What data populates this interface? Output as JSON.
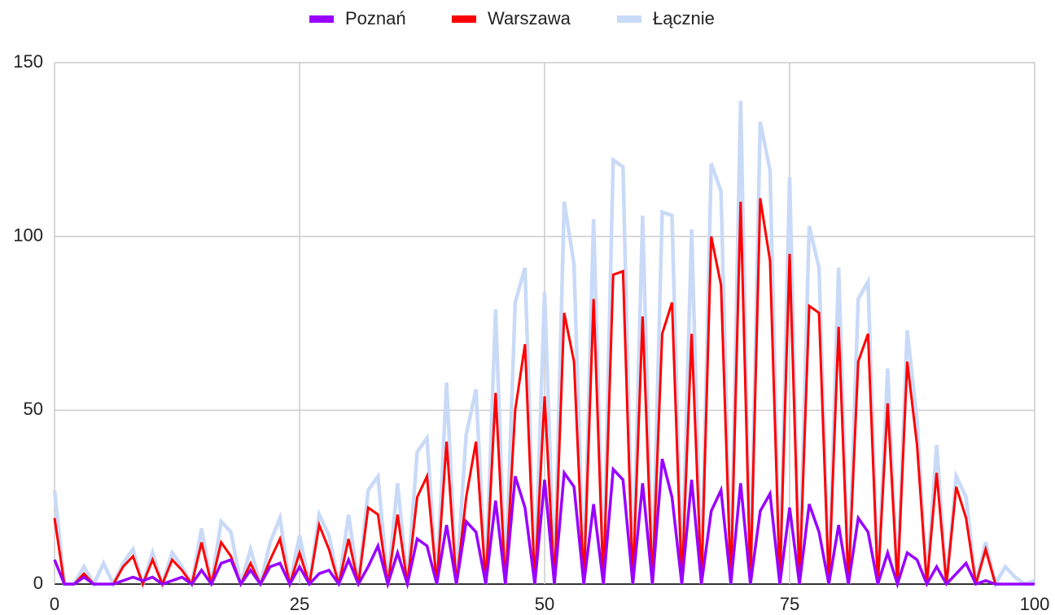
{
  "chart_data": {
    "type": "line",
    "x": [
      0,
      1,
      2,
      3,
      4,
      5,
      6,
      7,
      8,
      9,
      10,
      11,
      12,
      13,
      14,
      15,
      16,
      17,
      18,
      19,
      20,
      21,
      22,
      23,
      24,
      25,
      26,
      27,
      28,
      29,
      30,
      31,
      32,
      33,
      34,
      35,
      36,
      37,
      38,
      39,
      40,
      41,
      42,
      43,
      44,
      45,
      46,
      47,
      48,
      49,
      50,
      51,
      52,
      53,
      54,
      55,
      56,
      57,
      58,
      59,
      60,
      61,
      62,
      63,
      64,
      65,
      66,
      67,
      68,
      69,
      70,
      71,
      72,
      73,
      74,
      75,
      76,
      77,
      78,
      79,
      80,
      81,
      82,
      83,
      84,
      85,
      86,
      87,
      88,
      89,
      90,
      91,
      92,
      93,
      94,
      95,
      96,
      97,
      98,
      99,
      100
    ],
    "series": [
      {
        "name": "Poznań",
        "color": "#9900ff",
        "values": [
          7,
          0,
          0,
          2,
          0,
          0,
          0,
          1,
          2,
          1,
          2,
          0,
          1,
          2,
          0,
          4,
          0,
          6,
          7,
          0,
          4,
          0,
          5,
          6,
          0,
          5,
          0,
          3,
          4,
          0,
          7,
          0,
          5,
          11,
          0,
          9,
          0,
          13,
          11,
          0,
          17,
          0,
          18,
          15,
          0,
          24,
          0,
          31,
          22,
          0,
          30,
          0,
          32,
          28,
          0,
          23,
          0,
          33,
          30,
          0,
          29,
          0,
          36,
          25,
          0,
          30,
          0,
          21,
          27,
          0,
          29,
          0,
          21,
          26,
          0,
          22,
          0,
          23,
          15,
          0,
          17,
          0,
          19,
          15,
          0,
          9,
          0,
          9,
          7,
          0,
          5,
          0,
          3,
          6,
          0,
          1,
          0,
          0,
          0,
          0,
          0
        ]
      },
      {
        "name": "Warszawa",
        "color": "#ff0000",
        "values": [
          19,
          0,
          0,
          3,
          0,
          0,
          0,
          5,
          8,
          0,
          7,
          0,
          7,
          4,
          0,
          12,
          0,
          12,
          8,
          0,
          6,
          0,
          7,
          13,
          0,
          9,
          0,
          17,
          10,
          0,
          13,
          0,
          22,
          20,
          0,
          20,
          0,
          25,
          31,
          0,
          41,
          0,
          25,
          41,
          0,
          55,
          0,
          50,
          69,
          0,
          54,
          0,
          78,
          64,
          0,
          82,
          0,
          89,
          90,
          0,
          77,
          0,
          72,
          81,
          0,
          72,
          0,
          100,
          86,
          0,
          110,
          0,
          111,
          93,
          0,
          95,
          0,
          80,
          78,
          0,
          74,
          0,
          64,
          72,
          0,
          52,
          0,
          64,
          40,
          0,
          32,
          0,
          28,
          19,
          0,
          10,
          0,
          0,
          0,
          0,
          0
        ]
      },
      {
        "name": "Łącznie",
        "color": "#c9daf8",
        "values": [
          27,
          0,
          0,
          5,
          0,
          6,
          0,
          6,
          10,
          0,
          9,
          0,
          9,
          5,
          0,
          16,
          0,
          18,
          15,
          0,
          10,
          0,
          12,
          19,
          0,
          14,
          0,
          20,
          14,
          0,
          20,
          0,
          27,
          31,
          0,
          29,
          0,
          38,
          42,
          0,
          58,
          0,
          43,
          56,
          0,
          79,
          0,
          81,
          91,
          0,
          84,
          0,
          110,
          92,
          0,
          105,
          0,
          122,
          120,
          0,
          106,
          0,
          107,
          106,
          0,
          102,
          0,
          121,
          113,
          0,
          139,
          0,
          133,
          119,
          0,
          117,
          0,
          103,
          91,
          0,
          91,
          0,
          82,
          87,
          0,
          62,
          0,
          73,
          47,
          0,
          40,
          0,
          31,
          25,
          0,
          12,
          0,
          5,
          2,
          0,
          1
        ]
      }
    ],
    "xlim": [
      0,
      100
    ],
    "xticks": [
      0,
      25,
      50,
      75,
      100
    ],
    "ylim": [
      0,
      150
    ],
    "yticks": [
      0,
      50,
      100,
      150
    ],
    "grid": true,
    "legend": "top"
  }
}
